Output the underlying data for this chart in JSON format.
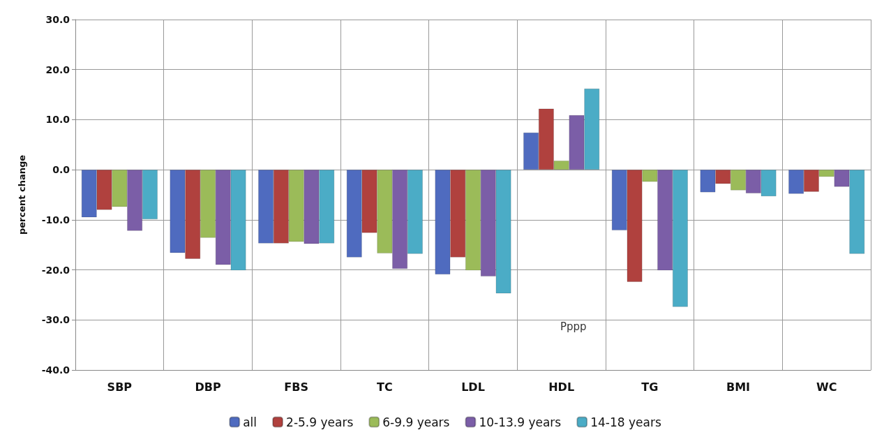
{
  "chart_data": {
    "type": "bar",
    "ylabel": "percent change",
    "categories": [
      "SBP",
      "DBP",
      "FBS",
      "TC",
      "LDL",
      "HDL",
      "TG",
      "BMI",
      "WC"
    ],
    "series": [
      {
        "name": "all",
        "color": "#4f6bbf",
        "values": [
          -9.5,
          -16.6,
          -14.7,
          -17.5,
          -20.9,
          7.4,
          -12.1,
          -4.5,
          -4.8
        ]
      },
      {
        "name": "2-5.9 years",
        "color": "#b0413e",
        "values": [
          -8.0,
          -17.8,
          -14.7,
          -12.6,
          -17.5,
          12.2,
          -22.4,
          -2.8,
          -4.4
        ]
      },
      {
        "name": "6-9.9 years",
        "color": "#9bbb59",
        "values": [
          -7.4,
          -13.6,
          -14.4,
          -16.7,
          -20.1,
          1.8,
          -2.4,
          -4.1,
          -1.4
        ]
      },
      {
        "name": "10-13.9 years",
        "color": "#7b5ea7",
        "values": [
          -12.2,
          -19.0,
          -14.8,
          -19.8,
          -21.3,
          10.9,
          -20.1,
          -4.7,
          -3.4
        ]
      },
      {
        "name": "14-18 years",
        "color": "#4bacc6",
        "values": [
          -9.9,
          -20.1,
          -14.7,
          -16.8,
          -24.7,
          16.2,
          -27.4,
          -5.3,
          -16.8
        ]
      }
    ],
    "ylim": [
      -40,
      30
    ],
    "yticks": [
      {
        "value": -40,
        "label": "-40.0"
      },
      {
        "value": -30,
        "label": "-30.0"
      },
      {
        "value": -20,
        "label": "-20.0"
      },
      {
        "value": -10,
        "label": "-10.0"
      },
      {
        "value": 0,
        "label": "0.0"
      },
      {
        "value": 10,
        "label": "10.0"
      },
      {
        "value": 20,
        "label": "20.0"
      },
      {
        "value": 30,
        "label": "30.0"
      }
    ],
    "annotations": [
      "Pppp"
    ],
    "grid": true,
    "legend": "bottom"
  }
}
